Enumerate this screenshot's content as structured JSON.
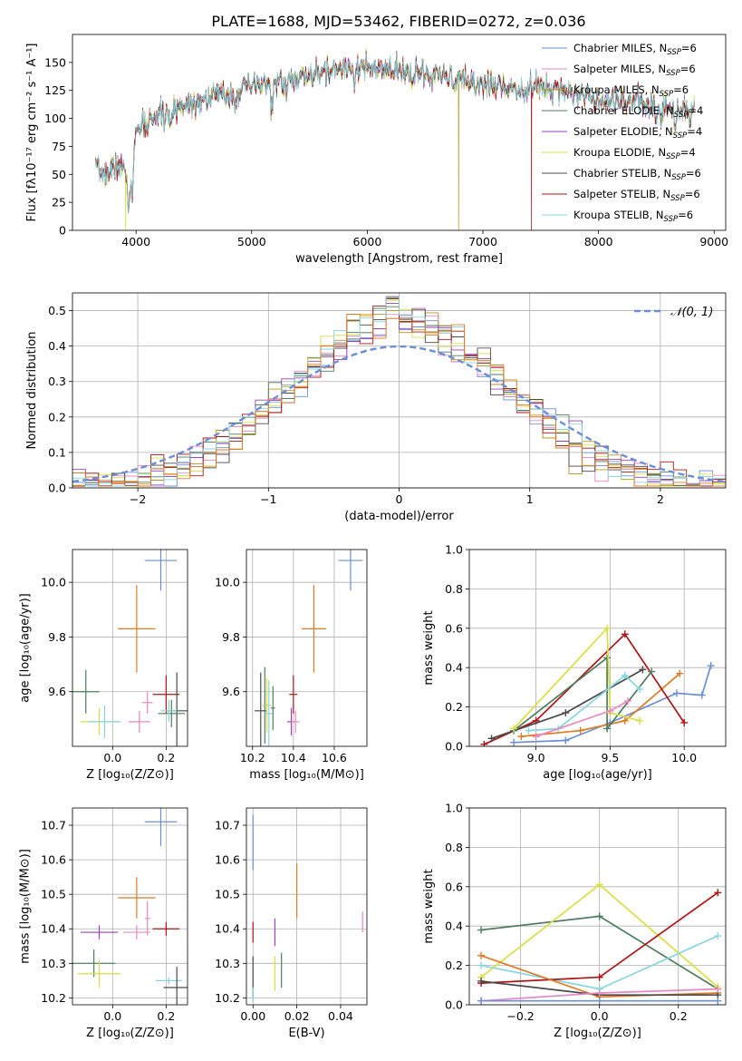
{
  "figure_title": "PLATE=1688, MJD=53462, FIBERID=0272, z=0.036",
  "series_colors": {
    "Chabrier MILES": "#6a8fd6",
    "Salpeter MILES": "#e987c1",
    "Kroupa MILES": "#c09020",
    "Chabrier ELODIE": "#4f7d5d",
    "Salpeter ELODIE": "#9b3fc0",
    "Kroupa ELODIE": "#d8e040",
    "Chabrier STELIB": "#4a4a4a",
    "Salpeter STELIB": "#b01414",
    "Kroupa STELIB": "#86d6e0",
    "Orange": "#e27a22",
    "Normal": "#6a8fd6"
  },
  "chart_data": [
    {
      "id": "spectrum",
      "type": "line",
      "title": "PLATE=1688, MJD=53462, FIBERID=0272, z=0.036",
      "xlabel": "wavelength [Angstrom, rest frame]",
      "ylabel": "Flux [fλ10⁻¹⁷ erg cm⁻² s⁻¹ A⁻¹]",
      "xlim": [
        3450,
        9100
      ],
      "ylim": [
        0,
        175
      ],
      "xticks": [
        4000,
        5000,
        6000,
        7000,
        8000,
        9000
      ],
      "yticks": [
        0,
        25,
        50,
        75,
        100,
        125,
        150
      ],
      "grid": false,
      "legend_position": "top-right",
      "legend": [
        "Chabrier MILES, N_SSP=6",
        "Salpeter MILES, N_SSP=6",
        "Kroupa MILES, N_SSP=6",
        "Chabrier ELODIE, N_SSP=4",
        "Salpeter ELODIE, N_SSP=4",
        "Kroupa ELODIE, N_SSP=4",
        "Chabrier STELIB, N_SSP=6",
        "Salpeter STELIB, N_SSP=6",
        "Kroupa STELIB, N_SSP=6"
      ],
      "continuum": [
        [
          3650,
          55
        ],
        [
          3750,
          50
        ],
        [
          3850,
          60
        ],
        [
          3950,
          45
        ],
        [
          4000,
          85
        ],
        [
          4100,
          100
        ],
        [
          4250,
          103
        ],
        [
          4400,
          112
        ],
        [
          4600,
          118
        ],
        [
          4800,
          122
        ],
        [
          5000,
          128
        ],
        [
          5200,
          132
        ],
        [
          5400,
          135
        ],
        [
          5600,
          140
        ],
        [
          5800,
          146
        ],
        [
          5900,
          148
        ],
        [
          6000,
          144
        ],
        [
          6200,
          142
        ],
        [
          6400,
          140
        ],
        [
          6600,
          138
        ],
        [
          6800,
          134
        ],
        [
          7000,
          131
        ],
        [
          7200,
          128
        ],
        [
          7400,
          127
        ],
        [
          7600,
          130
        ],
        [
          7800,
          122
        ],
        [
          8000,
          118
        ],
        [
          8200,
          116
        ],
        [
          8400,
          114
        ],
        [
          8600,
          110
        ],
        [
          8800,
          106
        ]
      ],
      "absorption_features": [
        [
          3934,
          30
        ],
        [
          3969,
          28
        ],
        [
          4101,
          15
        ],
        [
          4300,
          20
        ],
        [
          4861,
          12
        ],
        [
          5175,
          25
        ],
        [
          5270,
          10
        ],
        [
          5890,
          18
        ],
        [
          6563,
          8
        ],
        [
          7600,
          15
        ],
        [
          8500,
          18
        ],
        [
          8542,
          20
        ],
        [
          8662,
          18
        ]
      ],
      "dropouts": [
        {
          "series": "Kroupa ELODIE",
          "x": 3910
        },
        {
          "series": "Kroupa MILES",
          "x": 6790
        },
        {
          "series": "Salpeter STELIB",
          "x": 7420
        }
      ]
    },
    {
      "id": "residuals",
      "type": "histogram",
      "xlabel": "(data-model)/error",
      "ylabel": "Normed distribution",
      "xlim": [
        -2.5,
        2.5
      ],
      "ylim": [
        0,
        0.55
      ],
      "xticks": [
        -2,
        -1,
        0,
        1,
        2
      ],
      "yticks": [
        0.0,
        0.1,
        0.2,
        0.3,
        0.4,
        0.5
      ],
      "grid": true,
      "legend_position": "top-right",
      "legend": [
        "𝒩(0, 1)"
      ],
      "bin_width": 0.1,
      "normal_curve": {
        "mean": 0,
        "sigma": 1
      }
    },
    {
      "id": "age-vs-Z",
      "type": "errorbar",
      "xlabel": "Z [log₁₀(Z/Z⊙)]",
      "ylabel": "age  [log₁₀(age/yr)]",
      "xlim": [
        -0.15,
        0.28
      ],
      "ylim": [
        9.4,
        10.12
      ],
      "xticks": [
        0.0,
        0.2
      ],
      "yticks": [
        9.6,
        9.8,
        10.0
      ],
      "grid": true,
      "points": [
        {
          "series": "Chabrier MILES",
          "x": 0.18,
          "y": 10.08,
          "xerr": 0.06,
          "yerr": 0.11
        },
        {
          "series": "Orange",
          "x": 0.09,
          "y": 9.83,
          "xerr": 0.07,
          "yerr": 0.16
        },
        {
          "series": "Chabrier ELODIE",
          "x": -0.1,
          "y": 9.6,
          "xerr": 0.05,
          "yerr": 0.08
        },
        {
          "series": "Kroupa ELODIE",
          "x": -0.05,
          "y": 9.49,
          "xerr": 0.07,
          "yerr": 0.05
        },
        {
          "series": "Kroupa STELIB",
          "x": -0.03,
          "y": 9.49,
          "xerr": 0.06,
          "yerr": 0.06
        },
        {
          "series": "Salpeter MILES",
          "x": 0.1,
          "y": 9.49,
          "xerr": 0.04,
          "yerr": 0.04
        },
        {
          "series": "Salpeter MILES",
          "x": 0.13,
          "y": 9.56,
          "xerr": 0.02,
          "yerr": 0.04
        },
        {
          "series": "Salpeter STELIB",
          "x": 0.2,
          "y": 9.59,
          "xerr": 0.05,
          "yerr": 0.07
        },
        {
          "series": "Chabrier STELIB",
          "x": 0.24,
          "y": 9.53,
          "xerr": 0.04,
          "yerr": 0.14
        },
        {
          "series": "Chabrier ELODIE",
          "x": 0.22,
          "y": 9.52,
          "xerr": 0.05,
          "yerr": 0.05
        },
        {
          "series": "Kroupa STELIB",
          "x": 0.21,
          "y": 9.53,
          "xerr": 0.03,
          "yerr": 0.04
        }
      ]
    },
    {
      "id": "age-vs-mass",
      "type": "errorbar",
      "xlabel": "mass [log₁₀(M/M⊙)]",
      "ylabel": "",
      "xlim": [
        10.17,
        10.76
      ],
      "ylim": [
        9.4,
        10.12
      ],
      "xticks": [
        10.2,
        10.4,
        10.6
      ],
      "yticks": [
        9.6,
        9.8,
        10.0
      ],
      "grid": true,
      "points": [
        {
          "series": "Chabrier MILES",
          "x": 10.68,
          "y": 10.08,
          "xerr": 0.06,
          "yerr": 0.11
        },
        {
          "series": "Orange",
          "x": 10.5,
          "y": 9.83,
          "xerr": 0.06,
          "yerr": 0.16
        },
        {
          "series": "Chabrier STELIB",
          "x": 10.24,
          "y": 9.53,
          "xerr": 0.03,
          "yerr": 0.14
        },
        {
          "series": "Chabrier ELODIE",
          "x": 10.26,
          "y": 9.55,
          "xerr": 0.01,
          "yerr": 0.14
        },
        {
          "series": "Kroupa ELODIE",
          "x": 10.27,
          "y": 9.55,
          "xerr": 0.02,
          "yerr": 0.1
        },
        {
          "series": "Kroupa STELIB",
          "x": 10.28,
          "y": 9.52,
          "xerr": 0.02,
          "yerr": 0.12
        },
        {
          "series": "Chabrier ELODIE",
          "x": 10.3,
          "y": 9.54,
          "xerr": 0.01,
          "yerr": 0.08
        },
        {
          "series": "Salpeter STELIB",
          "x": 10.4,
          "y": 9.59,
          "xerr": 0.02,
          "yerr": 0.07
        },
        {
          "series": "Salpeter ELODIE",
          "x": 10.39,
          "y": 9.49,
          "xerr": 0.02,
          "yerr": 0.05
        },
        {
          "series": "Salpeter MILES",
          "x": 10.41,
          "y": 9.49,
          "xerr": 0.02,
          "yerr": 0.04
        }
      ]
    },
    {
      "id": "weight-vs-age",
      "type": "line",
      "xlabel": "age  [log₁₀(age/yr)]",
      "ylabel": "mass weight",
      "xlim": [
        8.55,
        10.28
      ],
      "ylim": [
        0,
        1
      ],
      "xticks": [
        9.0,
        9.5,
        10.0
      ],
      "yticks": [
        0.0,
        0.2,
        0.4,
        0.6,
        0.8,
        1.0
      ],
      "grid": true,
      "series": [
        {
          "series": "Chabrier MILES",
          "x": [
            8.85,
            9.2,
            9.5,
            9.95,
            10.12,
            10.18
          ],
          "y": [
            0.02,
            0.03,
            0.12,
            0.27,
            0.26,
            0.41
          ]
        },
        {
          "series": "Orange",
          "x": [
            8.9,
            9.3,
            9.6,
            9.97
          ],
          "y": [
            0.05,
            0.08,
            0.13,
            0.37
          ]
        },
        {
          "series": "Salpeter STELIB",
          "x": [
            8.65,
            9.0,
            9.6,
            10.0
          ],
          "y": [
            0.01,
            0.13,
            0.57,
            0.12
          ]
        },
        {
          "series": "Chabrier STELIB",
          "x": [
            8.7,
            9.2,
            9.72
          ],
          "y": [
            0.04,
            0.17,
            0.39
          ]
        },
        {
          "series": "Chabrier ELODIE",
          "x": [
            8.85,
            9.48,
            9.48,
            9.78
          ],
          "y": [
            0.08,
            0.45,
            0.09,
            0.38
          ]
        },
        {
          "series": "Kroupa ELODIE",
          "x": [
            8.85,
            9.48,
            9.5,
            9.7
          ],
          "y": [
            0.09,
            0.6,
            0.17,
            0.13
          ]
        },
        {
          "series": "Kroupa STELIB",
          "x": [
            8.95,
            9.15,
            9.6,
            9.7
          ],
          "y": [
            0.08,
            0.09,
            0.36,
            0.29
          ]
        },
        {
          "series": "Salpeter MILES",
          "x": [
            9.0,
            9.5,
            9.62
          ],
          "y": [
            0.05,
            0.18,
            0.23
          ]
        }
      ]
    },
    {
      "id": "mass-vs-Z",
      "type": "errorbar",
      "xlabel": "Z [log₁₀(Z/Z⊙)]",
      "ylabel": "mass [log₁₀(M/M⊙)]",
      "xlim": [
        -0.15,
        0.28
      ],
      "ylim": [
        10.18,
        10.75
      ],
      "xticks": [
        0.0,
        0.2
      ],
      "yticks": [
        10.2,
        10.3,
        10.4,
        10.5,
        10.6,
        10.7
      ],
      "grid": true,
      "points": [
        {
          "series": "Chabrier MILES",
          "x": 0.18,
          "y": 10.71,
          "xerr": 0.06,
          "yerr": 0.07
        },
        {
          "series": "Orange",
          "x": 0.09,
          "y": 10.49,
          "xerr": 0.07,
          "yerr": 0.06
        },
        {
          "series": "Salpeter ELODIE",
          "x": -0.05,
          "y": 10.39,
          "xerr": 0.07,
          "yerr": 0.02
        },
        {
          "series": "Salpeter MILES",
          "x": 0.09,
          "y": 10.39,
          "xerr": 0.05,
          "yerr": 0.02
        },
        {
          "series": "Salpeter MILES",
          "x": 0.13,
          "y": 10.43,
          "xerr": 0.01,
          "yerr": 0.05
        },
        {
          "series": "Salpeter STELIB",
          "x": 0.2,
          "y": 10.4,
          "xerr": 0.05,
          "yerr": 0.02
        },
        {
          "series": "Chabrier ELODIE",
          "x": -0.07,
          "y": 10.3,
          "xerr": 0.08,
          "yerr": 0.04
        },
        {
          "series": "Kroupa ELODIE",
          "x": -0.05,
          "y": 10.27,
          "xerr": 0.08,
          "yerr": 0.04
        },
        {
          "series": "Kroupa STELIB",
          "x": 0.21,
          "y": 10.25,
          "xerr": 0.05,
          "yerr": 0.01
        },
        {
          "series": "Chabrier STELIB",
          "x": 0.24,
          "y": 10.23,
          "xerr": 0.05,
          "yerr": 0.06
        }
      ]
    },
    {
      "id": "mass-vs-ebv",
      "type": "errorbar",
      "xlabel": "E(B-V)",
      "ylabel": "",
      "xlim": [
        -0.003,
        0.052
      ],
      "ylim": [
        10.18,
        10.75
      ],
      "xticks": [
        0.0,
        0.02,
        0.04
      ],
      "yticks": [
        10.2,
        10.3,
        10.4,
        10.5,
        10.6,
        10.7
      ],
      "grid": true,
      "points": [
        {
          "series": "Chabrier MILES",
          "x": 0.0,
          "y": 10.65,
          "xerr": 0,
          "yerr": 0.08
        },
        {
          "series": "Orange",
          "x": 0.02,
          "y": 10.51,
          "xerr": 0,
          "yerr": 0.08
        },
        {
          "series": "Salpeter MILES",
          "x": 0.05,
          "y": 10.42,
          "xerr": 0,
          "yerr": 0.03
        },
        {
          "series": "Salpeter STELIB",
          "x": 0.0,
          "y": 10.39,
          "xerr": 0,
          "yerr": 0.03
        },
        {
          "series": "Salpeter ELODIE",
          "x": 0.01,
          "y": 10.39,
          "xerr": 0,
          "yerr": 0.04
        },
        {
          "series": "Kroupa ELODIE",
          "x": 0.01,
          "y": 10.27,
          "xerr": 0,
          "yerr": 0.05
        },
        {
          "series": "Chabrier ELODIE",
          "x": 0.013,
          "y": 10.28,
          "xerr": 0,
          "yerr": 0.05
        },
        {
          "series": "Chabrier STELIB",
          "x": 0.0,
          "y": 10.26,
          "xerr": 0,
          "yerr": 0.06
        },
        {
          "series": "Kroupa STELIB",
          "x": 0.0,
          "y": 10.21,
          "xerr": 0,
          "yerr": 0.02
        }
      ]
    },
    {
      "id": "weight-vs-Z",
      "type": "line",
      "xlabel": "Z [log₁₀(Z/Z⊙)]",
      "ylabel": "mass weight",
      "xlim": [
        -0.33,
        0.32
      ],
      "ylim": [
        0,
        1
      ],
      "xticks": [
        -0.2,
        0.0,
        0.2
      ],
      "yticks": [
        0.0,
        0.2,
        0.4,
        0.6,
        0.8,
        1.0
      ],
      "grid": true,
      "series": [
        {
          "series": "Chabrier ELODIE",
          "x": [
            -0.3,
            0.0,
            0.3
          ],
          "y": [
            0.38,
            0.45,
            0.08
          ]
        },
        {
          "series": "Kroupa ELODIE",
          "x": [
            -0.3,
            0.0,
            0.3
          ],
          "y": [
            0.14,
            0.61,
            0.09
          ]
        },
        {
          "series": "Kroupa STELIB",
          "x": [
            -0.3,
            0.0,
            0.3
          ],
          "y": [
            0.2,
            0.08,
            0.35
          ]
        },
        {
          "series": "Salpeter STELIB",
          "x": [
            -0.3,
            0.0,
            0.3
          ],
          "y": [
            0.11,
            0.14,
            0.57
          ]
        },
        {
          "series": "Orange",
          "x": [
            -0.3,
            0.0,
            0.3
          ],
          "y": [
            0.25,
            0.04,
            0.06
          ]
        },
        {
          "series": "Chabrier STELIB",
          "x": [
            -0.3,
            0.0,
            0.3
          ],
          "y": [
            0.12,
            0.05,
            0.05
          ]
        },
        {
          "series": "Salpeter MILES",
          "x": [
            -0.3,
            0.0,
            0.3
          ],
          "y": [
            0.02,
            0.06,
            0.08
          ]
        },
        {
          "series": "Chabrier MILES",
          "x": [
            -0.3,
            0.0,
            0.3
          ],
          "y": [
            0.02,
            0.02,
            0.02
          ]
        }
      ]
    }
  ]
}
